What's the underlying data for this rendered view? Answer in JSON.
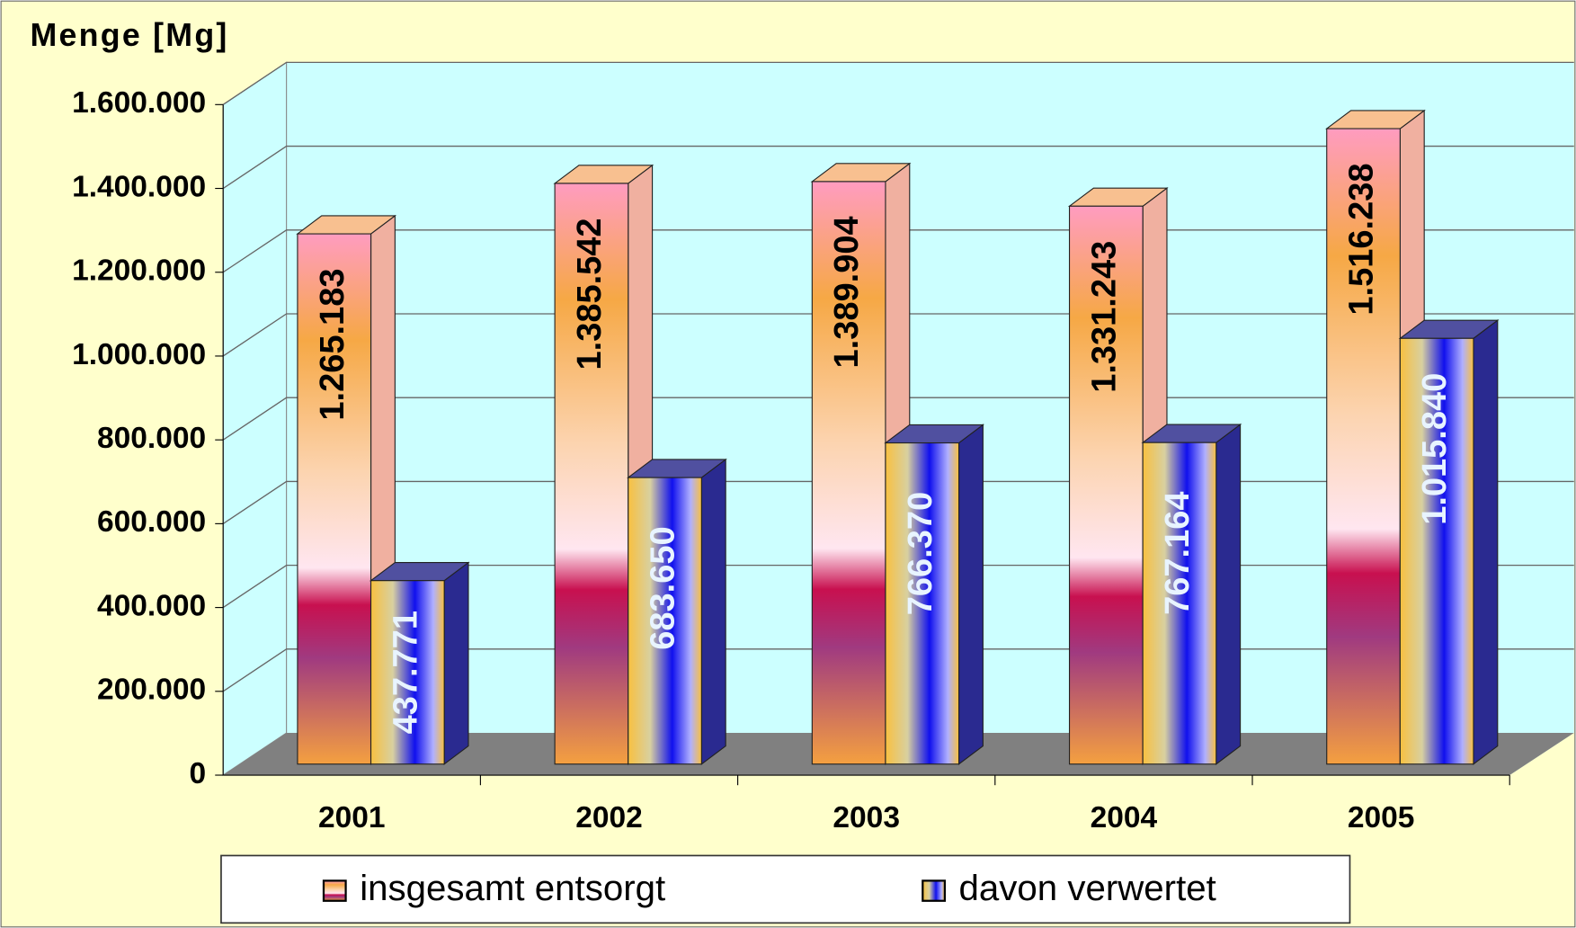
{
  "chart_data": {
    "type": "bar",
    "title": "Menge [Mg]",
    "categories": [
      "2001",
      "2002",
      "2003",
      "2004",
      "2005"
    ],
    "series": [
      {
        "name": "insgesamt entsorgt",
        "color": "#f4a640",
        "values": [
          1265183,
          1385542,
          1389904,
          1331243,
          1516238
        ],
        "value_labels": [
          "1.265.183",
          "1.385.542",
          "1.389.904",
          "1.331.243",
          "1.516.238"
        ]
      },
      {
        "name": "davon verwertet",
        "color": "#1010ee",
        "values": [
          437771,
          683650,
          766370,
          767164,
          1015840
        ],
        "value_labels": [
          "437.771",
          "683.650",
          "766.370",
          "767.164",
          "1.015.840"
        ]
      }
    ],
    "ylim": [
      0,
      1600000
    ],
    "yticks": [
      0,
      {
        "value": 200000,
        "label": "200.000"
      },
      {
        "value": 400000,
        "label": "400.000"
      },
      {
        "value": 600000,
        "label": "600.000"
      },
      {
        "value": 800000,
        "label": "800.000"
      },
      {
        "value": 1000000,
        "label": "1.000.000"
      },
      {
        "value": 1200000,
        "label": "1.200.000"
      },
      {
        "value": 1400000,
        "label": "1.400.000"
      },
      {
        "value": 1600000,
        "label": "1.600.000"
      }
    ],
    "grid": true
  }
}
